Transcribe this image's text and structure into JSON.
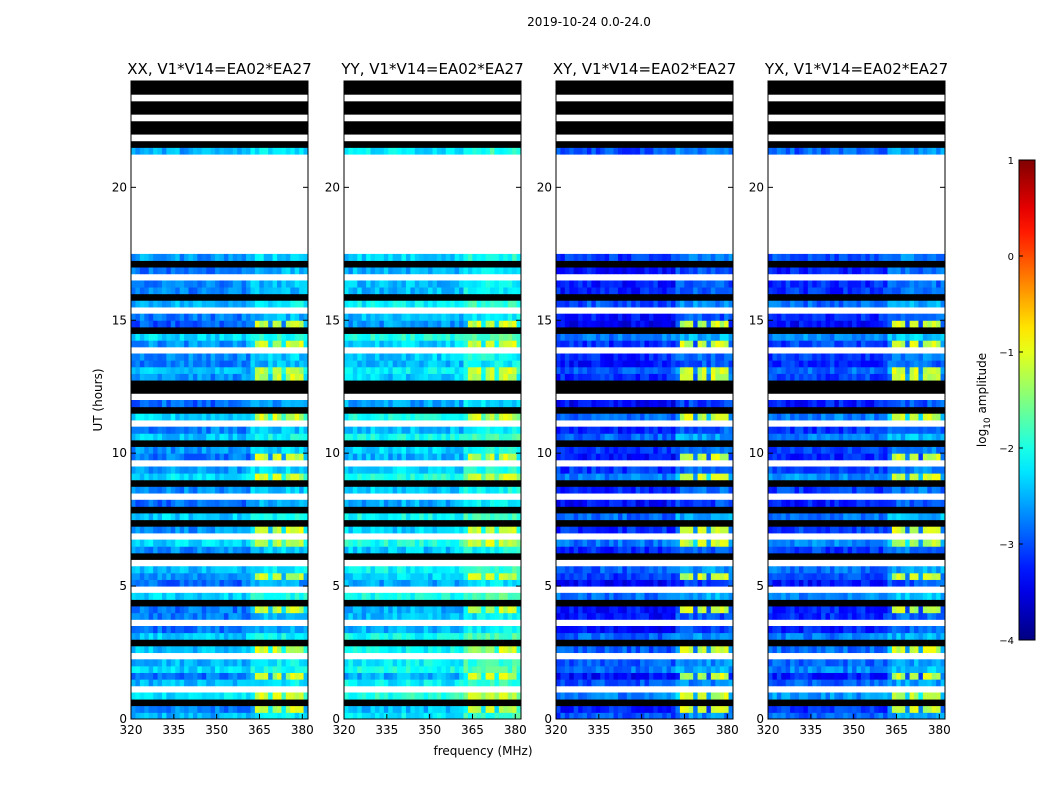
{
  "figure": {
    "suptitle": "2019-10-24 0.0-24.0"
  },
  "chart_data": {
    "type": "heatmap",
    "title": "2019-10-24 0.0-24.0",
    "xlabel": "frequency (MHz)",
    "ylabel": "UT (hours)",
    "xlim": [
      320,
      382
    ],
    "ylim": [
      0,
      24
    ],
    "xticks": [
      320,
      335,
      350,
      365,
      380
    ],
    "yticks": [
      0,
      5,
      10,
      15,
      20
    ],
    "colorbar": {
      "label": "log10 amplitude",
      "label_base": "log",
      "label_sub": "10",
      "label_rest": " amplitude",
      "range": [
        -4,
        1
      ],
      "ticks": [
        "1",
        "0",
        "−1",
        "−2",
        "−3",
        "−4"
      ],
      "colormap": "jet"
    },
    "flagged_hours": [
      [
        17.7,
        21.3
      ]
    ],
    "bright_channels_MHz": [
      [
        364,
        368
      ],
      [
        369,
        372.5
      ],
      [
        373.5,
        377
      ],
      [
        378,
        381
      ]
    ],
    "panels": [
      {
        "name": "XX",
        "title": "XX, V1*V14=EA02*EA27",
        "level": -2.6
      },
      {
        "name": "YY",
        "title": "YY, V1*V14=EA02*EA27",
        "level": -2.3
      },
      {
        "name": "XY",
        "title": "XY, V1*V14=EA02*EA27",
        "level": -3.1
      },
      {
        "name": "YX",
        "title": "YX, V1*V14=EA02*EA27",
        "level": -3.0
      }
    ]
  }
}
